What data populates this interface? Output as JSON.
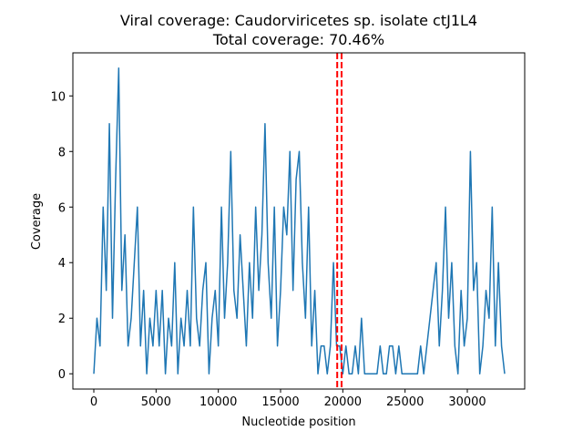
{
  "chart_data": {
    "type": "line",
    "title": [
      "Viral coverage: Caudorviricetes sp. isolate ctJ1L4",
      "Total coverage: 70.46%"
    ],
    "xlabel": "Nucleotide position",
    "ylabel": "Coverage",
    "x": [
      0,
      250,
      500,
      750,
      1000,
      1250,
      1500,
      1750,
      2000,
      2250,
      2500,
      2750,
      3000,
      3250,
      3500,
      3750,
      4000,
      4250,
      4500,
      4750,
      5000,
      5250,
      5500,
      5750,
      6000,
      6250,
      6500,
      6750,
      7000,
      7250,
      7500,
      7750,
      8000,
      8250,
      8500,
      8750,
      9000,
      9250,
      9500,
      9750,
      10000,
      10250,
      10500,
      10750,
      11000,
      11250,
      11500,
      11750,
      12000,
      12250,
      12500,
      12750,
      13000,
      13250,
      13500,
      13750,
      14000,
      14250,
      14500,
      14750,
      15000,
      15250,
      15500,
      15750,
      16000,
      16250,
      16500,
      16750,
      17000,
      17250,
      17500,
      17750,
      18000,
      18250,
      18500,
      18750,
      19000,
      19250,
      19500,
      19750,
      20000,
      20250,
      20500,
      20750,
      21000,
      21250,
      21500,
      21750,
      22000,
      22250,
      22500,
      22750,
      23000,
      23250,
      23500,
      23750,
      24000,
      24250,
      24500,
      24750,
      25000,
      25250,
      25500,
      25750,
      26000,
      26250,
      26500,
      26750,
      27000,
      27250,
      27500,
      27750,
      28000,
      28250,
      28500,
      28750,
      29000,
      29250,
      29500,
      29750,
      30000,
      30250,
      30500,
      30750,
      31000,
      31250,
      31500,
      31750,
      32000,
      32250,
      32500,
      32750,
      33000
    ],
    "series": [
      {
        "color": "#1f77b4",
        "values": [
          0,
          2,
          1,
          6,
          3,
          9,
          2,
          7,
          11,
          3,
          5,
          1,
          2,
          4,
          6,
          1,
          3,
          0,
          2,
          1,
          3,
          1,
          3,
          0,
          2,
          1,
          4,
          0,
          2,
          1,
          3,
          1,
          6,
          2,
          1,
          3,
          4,
          0,
          2,
          3,
          1,
          6,
          2,
          4,
          8,
          3,
          2,
          5,
          3,
          1,
          4,
          2,
          6,
          3,
          5,
          9,
          4,
          2,
          6,
          1,
          3,
          6,
          5,
          8,
          3,
          7,
          8,
          4,
          2,
          6,
          1,
          3,
          0,
          1,
          1,
          0,
          1,
          4,
          1,
          1,
          0,
          1,
          0,
          0,
          1,
          0,
          2,
          0,
          0,
          0,
          0,
          0,
          1,
          0,
          0,
          1,
          1,
          0,
          1,
          0,
          0,
          0,
          0,
          0,
          0,
          1,
          0,
          1,
          2,
          3,
          4,
          1,
          3,
          6,
          2,
          4,
          1,
          0,
          3,
          1,
          2,
          8,
          3,
          4,
          0,
          1,
          3,
          2,
          6,
          1,
          4,
          1,
          0
        ]
      }
    ],
    "vlines": [
      19550,
      19900
    ],
    "vline_color": "#ff0000",
    "xlim": [
      -1683,
      34610
    ],
    "ylim": [
      -0.55,
      11.55
    ],
    "xticks": [
      0,
      5000,
      10000,
      15000,
      20000,
      25000,
      30000
    ],
    "yticks": [
      0,
      2,
      4,
      6,
      8,
      10
    ]
  }
}
